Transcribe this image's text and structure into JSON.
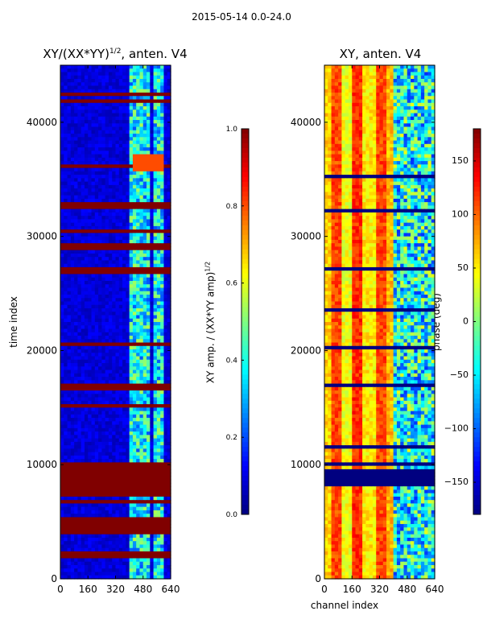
{
  "suptitle": "2015-05-14 0.0-24.0",
  "chart_data": [
    {
      "type": "heatmap",
      "title": "XY/(XX*YY)",
      "title_exp": "1/2",
      "title_suffix": ", anten. V4",
      "xlabel": "",
      "ylabel": "time index",
      "xlim": [
        0,
        640
      ],
      "ylim": [
        0,
        45000
      ],
      "xticks": [
        0,
        160,
        320,
        480,
        640
      ],
      "yticks": [
        0,
        10000,
        20000,
        30000,
        40000
      ],
      "colorbar": {
        "label": "XY amp. / (XX*YY amp)",
        "label_exp": "1/2",
        "range": [
          0.0,
          1.0
        ],
        "ticks": [
          0.0,
          0.2,
          0.4,
          0.6,
          0.8,
          1.0
        ],
        "tick_labels": [
          "0.0",
          "0.2",
          "0.4",
          "0.6",
          "0.8",
          "1.0"
        ],
        "colormap": "jet"
      },
      "saturated_row_bands": [
        [
          34800,
          37200
        ],
        [
          42500,
          43200
        ],
        [
          39600,
          41000
        ],
        [
          28000,
          28600
        ],
        [
          17800,
          18100
        ],
        [
          2600,
          2800
        ]
      ],
      "bright_channel_ranges": [
        [
          400,
          460
        ],
        [
          470,
          520
        ],
        [
          540,
          600
        ]
      ],
      "notable_patches": [
        {
          "x": [
            420,
            600
          ],
          "y": [
            7800,
            9200
          ],
          "level": 0.8
        }
      ]
    },
    {
      "type": "heatmap",
      "title": "XY, anten. V4",
      "xlabel": "channel index",
      "ylabel": "",
      "xlim": [
        0,
        640
      ],
      "ylim": [
        0,
        45000
      ],
      "xticks": [
        0,
        160,
        320,
        480,
        640
      ],
      "yticks": [
        0,
        10000,
        20000,
        30000,
        40000
      ],
      "colorbar": {
        "label": "phase (deg)",
        "range": [
          -180,
          180
        ],
        "ticks": [
          -150,
          -100,
          -50,
          0,
          50,
          100,
          150
        ],
        "tick_labels": [
          "−150",
          "−100",
          "−50",
          "0",
          "50",
          "100",
          "150"
        ],
        "colormap": "jet"
      },
      "dark_row_bands": [
        [
          35300,
          37000
        ],
        [
          17800,
          18100
        ],
        [
          2600,
          2800
        ]
      ],
      "stripe_pattern_deg": [
        {
          "x": [
            0,
            40
          ],
          "value": 60
        },
        {
          "x": [
            40,
            100
          ],
          "value": 110
        },
        {
          "x": [
            100,
            170
          ],
          "value": 40
        },
        {
          "x": [
            170,
            230
          ],
          "value": 120
        },
        {
          "x": [
            230,
            300
          ],
          "value": 50
        },
        {
          "x": [
            300,
            360
          ],
          "value": 110
        },
        {
          "x": [
            360,
            400
          ],
          "value": 70
        },
        {
          "x": [
            400,
            640
          ],
          "value": -40
        }
      ]
    }
  ],
  "colors": {
    "low": "#00007f",
    "high": "#7f0000",
    "frame": "#000000"
  }
}
